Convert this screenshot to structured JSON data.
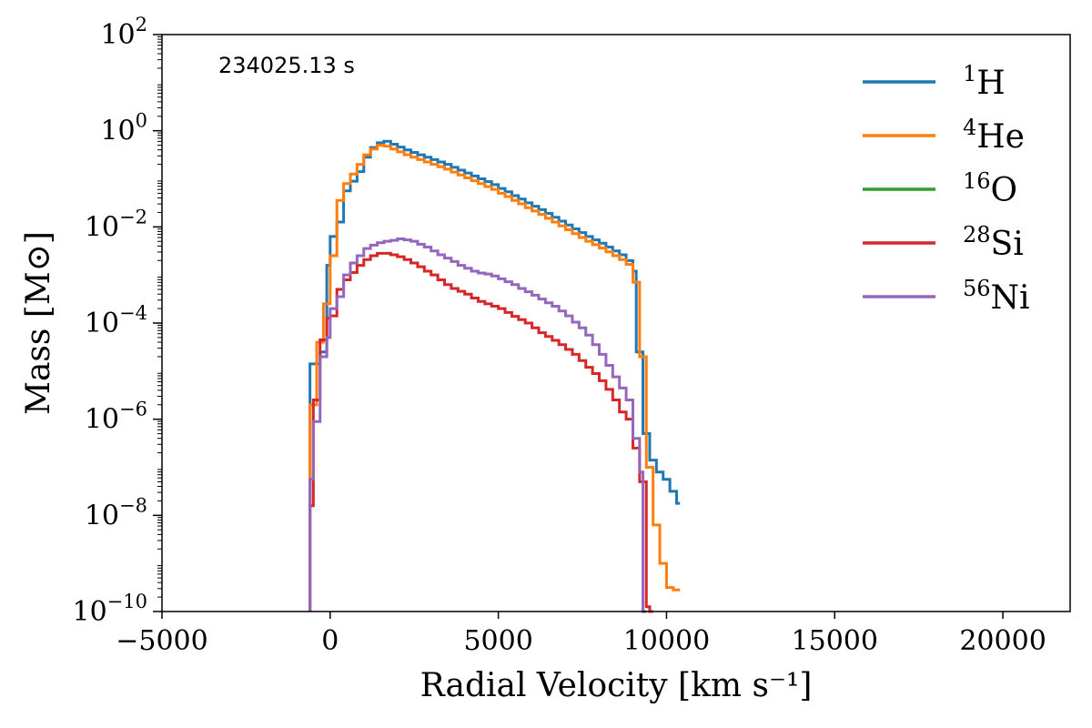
{
  "chart_data": {
    "type": "line",
    "step": "post",
    "annotation": "234025.13 s",
    "xlabel": "Radial Velocity [km s⁻¹]",
    "ylabel": "Mass [M⊙]",
    "xlim": [
      -5000,
      22000
    ],
    "ylim_log10": [
      -10,
      2
    ],
    "x_ticks": [
      -5000,
      0,
      5000,
      10000,
      15000,
      20000
    ],
    "x_tick_labels": [
      "−5000",
      "0",
      "5000",
      "10000",
      "15000",
      "20000"
    ],
    "y_tick_exponents": [
      -10,
      -8,
      -6,
      -4,
      -2,
      0,
      2
    ],
    "y_tick_labels": [
      "10",
      "10",
      "10",
      "10",
      "10",
      "10",
      "10"
    ],
    "y_tick_sup": [
      "−10",
      "−8",
      "−6",
      "−4",
      "−2",
      "0",
      "2"
    ],
    "legend_position": "top-right",
    "colors": {
      "H": "#1f77b4",
      "He": "#ff7f0e",
      "O": "#2ca02c",
      "Si": "#d62728",
      "Ni": "#9467bd"
    },
    "series": [
      {
        "key": "H",
        "mass_number": "1",
        "symbol": "H",
        "color": "#1f77b4",
        "points": [
          [
            -600,
            -4.85
          ],
          [
            -300,
            -4.6
          ],
          [
            -100,
            -2.8
          ],
          [
            0,
            -2.2
          ],
          [
            200,
            -1.9
          ],
          [
            400,
            -1.25
          ],
          [
            600,
            -1.05
          ],
          [
            800,
            -0.85
          ],
          [
            1000,
            -0.55
          ],
          [
            1200,
            -0.35
          ],
          [
            1400,
            -0.25
          ],
          [
            1600,
            -0.22
          ],
          [
            1800,
            -0.28
          ],
          [
            2000,
            -0.34
          ],
          [
            2200,
            -0.4
          ],
          [
            2400,
            -0.45
          ],
          [
            2600,
            -0.5
          ],
          [
            2800,
            -0.55
          ],
          [
            3000,
            -0.6
          ],
          [
            3200,
            -0.65
          ],
          [
            3400,
            -0.7
          ],
          [
            3600,
            -0.76
          ],
          [
            3800,
            -0.82
          ],
          [
            4000,
            -0.88
          ],
          [
            4200,
            -0.94
          ],
          [
            4400,
            -1.0
          ],
          [
            4600,
            -1.06
          ],
          [
            4800,
            -1.12
          ],
          [
            5000,
            -1.2
          ],
          [
            5200,
            -1.27
          ],
          [
            5400,
            -1.35
          ],
          [
            5600,
            -1.42
          ],
          [
            5800,
            -1.5
          ],
          [
            6000,
            -1.57
          ],
          [
            6200,
            -1.64
          ],
          [
            6400,
            -1.72
          ],
          [
            6600,
            -1.8
          ],
          [
            6800,
            -1.88
          ],
          [
            7000,
            -1.96
          ],
          [
            7200,
            -2.04
          ],
          [
            7400,
            -2.12
          ],
          [
            7600,
            -2.2
          ],
          [
            7800,
            -2.27
          ],
          [
            8000,
            -2.34
          ],
          [
            8200,
            -2.42
          ],
          [
            8400,
            -2.5
          ],
          [
            8600,
            -2.58
          ],
          [
            8800,
            -2.7
          ],
          [
            9000,
            -2.92
          ],
          [
            9100,
            -4.6
          ],
          [
            9300,
            -6.3
          ],
          [
            9500,
            -6.85
          ],
          [
            9700,
            -7.1
          ],
          [
            9900,
            -7.25
          ],
          [
            10100,
            -7.5
          ],
          [
            10300,
            -7.75
          ]
        ]
      },
      {
        "key": "He",
        "mass_number": "4",
        "symbol": "He",
        "color": "#ff7f0e",
        "points": [
          [
            -600,
            -5.7
          ],
          [
            -400,
            -4.4
          ],
          [
            -200,
            -3.6
          ],
          [
            0,
            -2.6
          ],
          [
            200,
            -1.45
          ],
          [
            400,
            -1.1
          ],
          [
            600,
            -0.9
          ],
          [
            800,
            -0.7
          ],
          [
            1000,
            -0.5
          ],
          [
            1200,
            -0.38
          ],
          [
            1400,
            -0.3
          ],
          [
            1600,
            -0.32
          ],
          [
            1800,
            -0.38
          ],
          [
            2000,
            -0.44
          ],
          [
            2200,
            -0.5
          ],
          [
            2400,
            -0.55
          ],
          [
            2600,
            -0.6
          ],
          [
            2800,
            -0.65
          ],
          [
            3000,
            -0.7
          ],
          [
            3200,
            -0.75
          ],
          [
            3400,
            -0.8
          ],
          [
            3600,
            -0.86
          ],
          [
            3800,
            -0.92
          ],
          [
            4000,
            -0.98
          ],
          [
            4200,
            -1.04
          ],
          [
            4400,
            -1.1
          ],
          [
            4600,
            -1.16
          ],
          [
            4800,
            -1.22
          ],
          [
            5000,
            -1.3
          ],
          [
            5200,
            -1.37
          ],
          [
            5400,
            -1.45
          ],
          [
            5600,
            -1.52
          ],
          [
            5800,
            -1.6
          ],
          [
            6000,
            -1.67
          ],
          [
            6200,
            -1.74
          ],
          [
            6400,
            -1.82
          ],
          [
            6600,
            -1.9
          ],
          [
            6800,
            -1.98
          ],
          [
            7000,
            -2.06
          ],
          [
            7200,
            -2.14
          ],
          [
            7400,
            -2.22
          ],
          [
            7600,
            -2.3
          ],
          [
            7800,
            -2.37
          ],
          [
            8000,
            -2.44
          ],
          [
            8200,
            -2.52
          ],
          [
            8400,
            -2.6
          ],
          [
            8600,
            -2.68
          ],
          [
            8800,
            -2.78
          ],
          [
            9000,
            -3.15
          ],
          [
            9200,
            -4.7
          ],
          [
            9400,
            -7.0
          ],
          [
            9600,
            -8.2
          ],
          [
            9800,
            -9.0
          ],
          [
            10000,
            -9.5
          ],
          [
            10200,
            -9.55
          ],
          [
            10300,
            -9.55
          ]
        ]
      },
      {
        "key": "O",
        "mass_number": "16",
        "symbol": "O",
        "color": "#2ca02c",
        "points": []
      },
      {
        "key": "Si",
        "mass_number": "28",
        "symbol": "Si",
        "color": "#d62728",
        "points": [
          [
            -600,
            -7.8
          ],
          [
            -500,
            -5.6
          ],
          [
            -300,
            -4.35
          ],
          [
            -100,
            -3.9
          ],
          [
            0,
            -3.85
          ],
          [
            200,
            -3.3
          ],
          [
            400,
            -3.1
          ],
          [
            600,
            -2.95
          ],
          [
            800,
            -2.8
          ],
          [
            1000,
            -2.68
          ],
          [
            1200,
            -2.6
          ],
          [
            1400,
            -2.55
          ],
          [
            1600,
            -2.55
          ],
          [
            1800,
            -2.58
          ],
          [
            2000,
            -2.62
          ],
          [
            2200,
            -2.68
          ],
          [
            2400,
            -2.75
          ],
          [
            2600,
            -2.83
          ],
          [
            2800,
            -2.92
          ],
          [
            3000,
            -3.0
          ],
          [
            3200,
            -3.1
          ],
          [
            3400,
            -3.2
          ],
          [
            3600,
            -3.28
          ],
          [
            3800,
            -3.34
          ],
          [
            4000,
            -3.4
          ],
          [
            4200,
            -3.48
          ],
          [
            4400,
            -3.55
          ],
          [
            4600,
            -3.6
          ],
          [
            4800,
            -3.65
          ],
          [
            5000,
            -3.7
          ],
          [
            5200,
            -3.78
          ],
          [
            5400,
            -3.86
          ],
          [
            5600,
            -3.93
          ],
          [
            5800,
            -4.0
          ],
          [
            6000,
            -4.1
          ],
          [
            6200,
            -4.2
          ],
          [
            6400,
            -4.28
          ],
          [
            6600,
            -4.36
          ],
          [
            6800,
            -4.45
          ],
          [
            7000,
            -4.55
          ],
          [
            7200,
            -4.65
          ],
          [
            7400,
            -4.78
          ],
          [
            7600,
            -4.92
          ],
          [
            7800,
            -5.05
          ],
          [
            8000,
            -5.2
          ],
          [
            8200,
            -5.38
          ],
          [
            8400,
            -5.6
          ],
          [
            8600,
            -5.85
          ],
          [
            8800,
            -6.0
          ],
          [
            9000,
            -6.6
          ],
          [
            9200,
            -7.3
          ],
          [
            9400,
            -9.9
          ],
          [
            9500,
            -10.0
          ]
        ]
      },
      {
        "key": "Ni",
        "mass_number": "56",
        "symbol": "Ni",
        "color": "#9467bd",
        "points": [
          [
            -600,
            -7.25
          ],
          [
            -500,
            -6.05
          ],
          [
            -300,
            -4.7
          ],
          [
            -100,
            -4.3
          ],
          [
            0,
            -3.7
          ],
          [
            200,
            -3.45
          ],
          [
            400,
            -3.0
          ],
          [
            600,
            -2.75
          ],
          [
            800,
            -2.6
          ],
          [
            1000,
            -2.45
          ],
          [
            1200,
            -2.38
          ],
          [
            1400,
            -2.33
          ],
          [
            1600,
            -2.3
          ],
          [
            1800,
            -2.28
          ],
          [
            2000,
            -2.25
          ],
          [
            2200,
            -2.27
          ],
          [
            2400,
            -2.3
          ],
          [
            2600,
            -2.36
          ],
          [
            2800,
            -2.42
          ],
          [
            3000,
            -2.5
          ],
          [
            3200,
            -2.58
          ],
          [
            3400,
            -2.65
          ],
          [
            3600,
            -2.72
          ],
          [
            3800,
            -2.8
          ],
          [
            4000,
            -2.86
          ],
          [
            4200,
            -2.92
          ],
          [
            4400,
            -2.96
          ],
          [
            4600,
            -2.98
          ],
          [
            4800,
            -3.02
          ],
          [
            5000,
            -3.08
          ],
          [
            5200,
            -3.14
          ],
          [
            5400,
            -3.2
          ],
          [
            5600,
            -3.28
          ],
          [
            5800,
            -3.35
          ],
          [
            6000,
            -3.42
          ],
          [
            6200,
            -3.5
          ],
          [
            6400,
            -3.58
          ],
          [
            6600,
            -3.65
          ],
          [
            6800,
            -3.75
          ],
          [
            7000,
            -3.85
          ],
          [
            7200,
            -3.98
          ],
          [
            7400,
            -4.1
          ],
          [
            7600,
            -4.25
          ],
          [
            7800,
            -4.45
          ],
          [
            8000,
            -4.65
          ],
          [
            8200,
            -4.88
          ],
          [
            8400,
            -5.12
          ],
          [
            8600,
            -5.35
          ],
          [
            8800,
            -5.6
          ],
          [
            9000,
            -6.4
          ],
          [
            9200,
            -7.1
          ],
          [
            9300,
            -10.0
          ]
        ]
      }
    ]
  }
}
